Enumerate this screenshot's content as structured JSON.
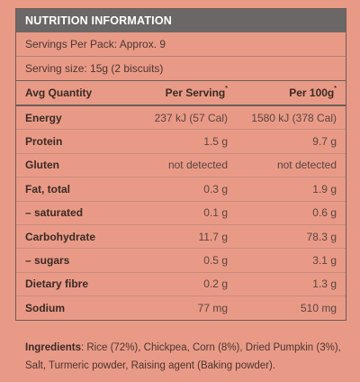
{
  "panel": {
    "title": "NUTRITION INFORMATION",
    "servings_per_pack": "Servings Per Pack: Approx. 9",
    "serving_size": "Serving size: 15g (2 biscuits)"
  },
  "table": {
    "headers": {
      "col1": "Avg Quantity",
      "col2": "Per Serving",
      "col3": "Per 100g",
      "marker": "*"
    },
    "rows": [
      {
        "label": "Energy",
        "per_serving": "237 kJ (57 Cal)",
        "per_100g": "1580 kJ (378 Cal)"
      },
      {
        "label": "Protein",
        "per_serving": "1.5 g",
        "per_100g": "9.7 g"
      },
      {
        "label": "Gluten",
        "per_serving": "not detected",
        "per_100g": "not detected"
      },
      {
        "label": "Fat, total",
        "per_serving": "0.3 g",
        "per_100g": "1.9 g"
      },
      {
        "label": "– saturated",
        "per_serving": "0.1 g",
        "per_100g": "0.6 g"
      },
      {
        "label": "Carbohydrate",
        "per_serving": "11.7 g",
        "per_100g": "78.3 g"
      },
      {
        "label": "– sugars",
        "per_serving": "0.5 g",
        "per_100g": "3.1 g"
      },
      {
        "label": "Dietary fibre",
        "per_serving": "0.2 g",
        "per_100g": "1.3 g"
      },
      {
        "label": "Sodium",
        "per_serving": "77 mg",
        "per_100g": "510 mg"
      }
    ]
  },
  "ingredients": {
    "label": "Ingredients",
    "text": ": Rice (72%), Chickpea, Corn (8%), Dried Pumpkin (3%), Salt, Turmeric powder, Raising agent (Baking powder)."
  }
}
